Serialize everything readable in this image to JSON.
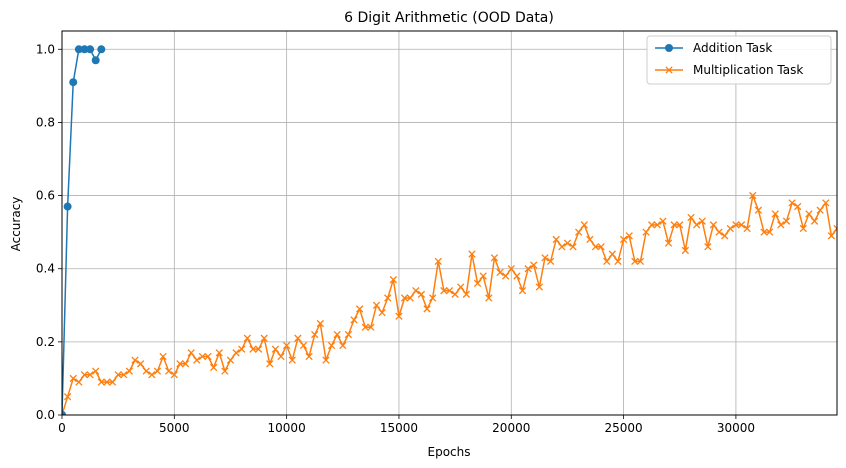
{
  "chart_data": {
    "type": "line",
    "title": "6 Digit Arithmetic (OOD Data)",
    "xlabel": "Epochs",
    "ylabel": "Accuracy",
    "xlim": [
      0,
      34500
    ],
    "ylim": [
      0,
      1.05
    ],
    "xticks": [
      0,
      5000,
      10000,
      15000,
      20000,
      25000,
      30000
    ],
    "yticks": [
      0.0,
      0.2,
      0.4,
      0.6,
      0.8,
      1.0
    ],
    "xtick_labels": [
      "0",
      "5000",
      "10000",
      "15000",
      "20000",
      "25000",
      "30000"
    ],
    "ytick_labels": [
      "0.0",
      "0.2",
      "0.4",
      "0.6",
      "0.8",
      "1.0"
    ],
    "grid": true,
    "legend_position": "top-right",
    "series": [
      {
        "name": "Addition Task",
        "color": "#1f77b4",
        "marker": "circle",
        "x": [
          0,
          250,
          500,
          750,
          1000,
          1250,
          1500,
          1750
        ],
        "y": [
          0.0,
          0.57,
          0.91,
          1.0,
          1.0,
          1.0,
          0.97,
          1.0
        ]
      },
      {
        "name": "Multiplication Task",
        "color": "#ff7f0e",
        "marker": "x",
        "x": [
          0,
          250,
          500,
          750,
          1000,
          1250,
          1500,
          1750,
          2000,
          2250,
          2500,
          2750,
          3000,
          3250,
          3500,
          3750,
          4000,
          4250,
          4500,
          4750,
          5000,
          5250,
          5500,
          5750,
          6000,
          6250,
          6500,
          6750,
          7000,
          7250,
          7500,
          7750,
          8000,
          8250,
          8500,
          8750,
          9000,
          9250,
          9500,
          9750,
          10000,
          10250,
          10500,
          10750,
          11000,
          11250,
          11500,
          11750,
          12000,
          12250,
          12500,
          12750,
          13000,
          13250,
          13500,
          13750,
          14000,
          14250,
          14500,
          14750,
          15000,
          15250,
          15500,
          15750,
          16000,
          16250,
          16500,
          16750,
          17000,
          17250,
          17500,
          17750,
          18000,
          18250,
          18500,
          18750,
          19000,
          19250,
          19500,
          19750,
          20000,
          20250,
          20500,
          20750,
          21000,
          21250,
          21500,
          21750,
          22000,
          22250,
          22500,
          22750,
          23000,
          23250,
          23500,
          23750,
          24000,
          24250,
          24500,
          24750,
          25000,
          25250,
          25500,
          25750,
          26000,
          26250,
          26500,
          26750,
          27000,
          27250,
          27500,
          27750,
          28000,
          28250,
          28500,
          28750,
          29000,
          29250,
          29500,
          29750,
          30000,
          30250,
          30500,
          30750,
          31000,
          31250,
          31500,
          31750,
          32000,
          32250,
          32500,
          32750,
          33000,
          33250,
          33500,
          33750,
          34000,
          34250,
          34500
        ],
        "y": [
          0.0,
          0.05,
          0.1,
          0.09,
          0.11,
          0.11,
          0.12,
          0.09,
          0.09,
          0.09,
          0.11,
          0.11,
          0.12,
          0.15,
          0.14,
          0.12,
          0.11,
          0.12,
          0.16,
          0.12,
          0.11,
          0.14,
          0.14,
          0.17,
          0.15,
          0.16,
          0.16,
          0.13,
          0.17,
          0.12,
          0.15,
          0.17,
          0.18,
          0.21,
          0.18,
          0.18,
          0.21,
          0.14,
          0.18,
          0.16,
          0.19,
          0.15,
          0.21,
          0.19,
          0.16,
          0.22,
          0.25,
          0.15,
          0.19,
          0.22,
          0.19,
          0.22,
          0.26,
          0.29,
          0.24,
          0.24,
          0.3,
          0.28,
          0.32,
          0.37,
          0.27,
          0.32,
          0.32,
          0.34,
          0.33,
          0.29,
          0.32,
          0.42,
          0.34,
          0.34,
          0.33,
          0.35,
          0.33,
          0.44,
          0.36,
          0.38,
          0.32,
          0.43,
          0.39,
          0.38,
          0.4,
          0.38,
          0.34,
          0.4,
          0.41,
          0.35,
          0.43,
          0.42,
          0.48,
          0.46,
          0.47,
          0.46,
          0.5,
          0.52,
          0.48,
          0.46,
          0.46,
          0.42,
          0.44,
          0.42,
          0.48,
          0.49,
          0.42,
          0.42,
          0.5,
          0.52,
          0.52,
          0.53,
          0.47,
          0.52,
          0.52,
          0.45,
          0.54,
          0.52,
          0.53,
          0.46,
          0.52,
          0.5,
          0.49,
          0.51,
          0.52,
          0.52,
          0.51,
          0.6,
          0.56,
          0.5,
          0.5,
          0.55,
          0.52,
          0.53,
          0.58,
          0.57,
          0.51,
          0.55,
          0.53,
          0.56,
          0.58,
          0.49,
          0.51
        ]
      }
    ]
  }
}
